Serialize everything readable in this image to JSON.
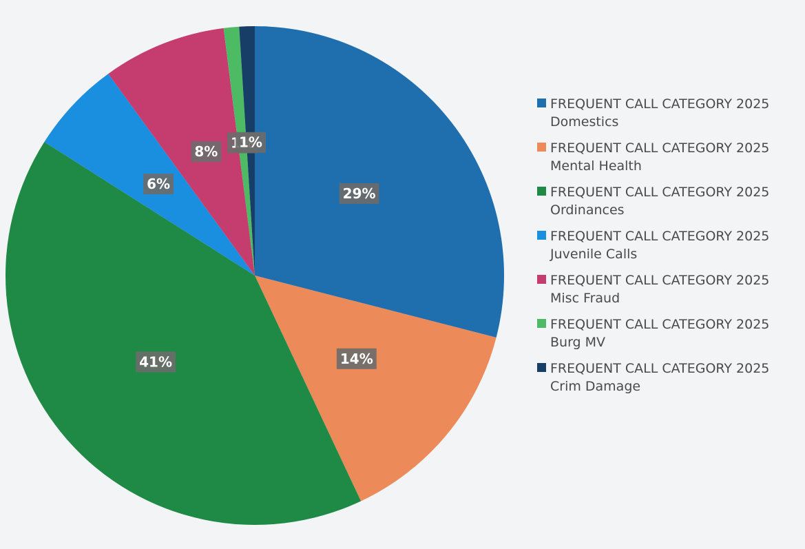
{
  "chart_data": {
    "type": "pie",
    "categories": [
      "FREQUENT CALL CATEGORY 2025 Domestics",
      "FREQUENT CALL CATEGORY 2025 Mental Health",
      "FREQUENT CALL CATEGORY 2025 Ordinances",
      "FREQUENT CALL CATEGORY 2025 Juvenile Calls",
      "FREQUENT CALL CATEGORY 2025 Misc Fraud",
      "FREQUENT CALL CATEGORY 2025 Burg MV",
      "FREQUENT CALL CATEGORY 2025 Crim Damage"
    ],
    "values": [
      29,
      14,
      41,
      6,
      8,
      1,
      1
    ],
    "value_labels": [
      "29%",
      "14%",
      "41%",
      "6%",
      "8%",
      "1%",
      "1%"
    ],
    "colors": [
      "#1f6eae",
      "#ec8a5a",
      "#1e8a46",
      "#1b8fdf",
      "#c53d6f",
      "#4dbb64",
      "#173e66"
    ],
    "legend": "right"
  }
}
